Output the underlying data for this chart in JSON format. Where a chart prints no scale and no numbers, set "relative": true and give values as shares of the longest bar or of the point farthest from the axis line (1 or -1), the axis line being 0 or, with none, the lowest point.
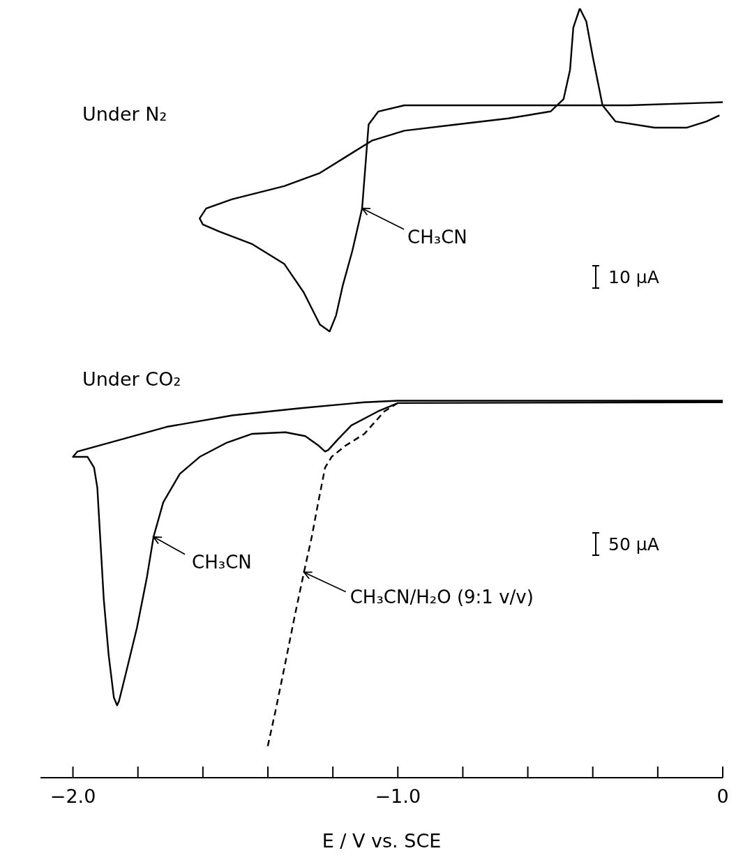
{
  "chart_data": {
    "type": "line",
    "relative": true,
    "xlim": [
      -2.1,
      0
    ],
    "xticks": [
      {
        "value": -2,
        "label": "−2.0"
      },
      {
        "value": -1.8,
        "label": null
      },
      {
        "value": -1.6,
        "label": null
      },
      {
        "value": -1.4,
        "label": null
      },
      {
        "value": -1.2,
        "label": null
      },
      {
        "value": -1,
        "label": "−1.0"
      },
      {
        "value": -0.8,
        "label": null
      },
      {
        "value": -0.6,
        "label": null
      },
      {
        "value": -0.4,
        "label": null
      },
      {
        "value": -0.2,
        "label": null
      },
      0
    ],
    "xlabel": "E / V vs. SCE",
    "marker": "none",
    "line_style": "solid",
    "annotations": [
      "Under N₂",
      "10 μA",
      "Under CO₂",
      "50 μA"
    ],
    "series": [
      {
        "name": "CH₃CN",
        "color": "#000000",
        "x": [
          0,
          -0.29,
          -0.7,
          -0.98,
          -1.06,
          -1.09,
          -1.11,
          -1.14,
          -1.17,
          -1.19,
          -1.21,
          -1.24,
          -1.29,
          -1.35,
          -1.45,
          -1.55,
          -1.6,
          -1.61,
          -1.59,
          -1.51,
          -1.35,
          -1.24,
          -1.16,
          -1.08,
          -0.98,
          -0.82,
          -0.66,
          -0.53,
          -0.49,
          -0.47,
          -0.46,
          -0.44,
          -0.42,
          -0.4,
          -0.37,
          -0.33,
          -0.21,
          -0.11,
          -0.05,
          -0.01
        ],
        "values": [
          0.878,
          0.874,
          0.874,
          0.874,
          0.866,
          0.849,
          0.74,
          0.685,
          0.639,
          0.601,
          0.58,
          0.589,
          0.631,
          0.668,
          0.694,
          0.71,
          0.719,
          0.727,
          0.74,
          0.752,
          0.769,
          0.786,
          0.807,
          0.828,
          0.841,
          0.849,
          0.857,
          0.866,
          0.882,
          0.92,
          0.975,
          1,
          0.983,
          0.937,
          0.874,
          0.853,
          0.845,
          0.845,
          0.853,
          0.861
        ]
      },
      {
        "name": "CH₃CN",
        "color": "#000000",
        "x": [
          0,
          -1.0,
          -1.062,
          -1.143,
          -1.184,
          -1.214,
          -1.224,
          -1.245,
          -1.285,
          -1.346,
          -1.448,
          -1.529,
          -1.61,
          -1.671,
          -1.722,
          -1.752,
          -1.773,
          -1.803,
          -1.834,
          -1.858,
          -1.864,
          -1.874,
          -1.89,
          -1.905,
          -1.915,
          -1.925,
          -1.935,
          -1.955,
          -1.996,
          -2.0,
          -1.986,
          -1.712,
          -1.509,
          -1.306,
          -1.103,
          -1.0,
          0
        ],
        "values": [
          0.488,
          0.487,
          0.476,
          0.458,
          0.44,
          0.426,
          0.424,
          0.432,
          0.444,
          0.449,
          0.447,
          0.435,
          0.417,
          0.395,
          0.358,
          0.313,
          0.259,
          0.195,
          0.141,
          0.1,
          0.094,
          0.104,
          0.159,
          0.231,
          0.304,
          0.377,
          0.403,
          0.417,
          0.417,
          0.417,
          0.424,
          0.456,
          0.471,
          0.48,
          0.488,
          0.49,
          0.49
        ]
      },
      {
        "name": "CH₃CN/H₂O (9:1 v/v)",
        "color": "#000000",
        "line_style": "dashed",
        "x": [
          -1.0,
          -1.042,
          -1.103,
          -1.163,
          -1.204,
          -1.224,
          -1.245,
          -1.265,
          -1.289,
          -1.316,
          -1.346,
          -1.377,
          -1.403
        ],
        "values": [
          0.487,
          0.476,
          0.447,
          0.431,
          0.417,
          0.403,
          0.358,
          0.313,
          0.267,
          0.213,
          0.15,
          0.086,
          0.036
        ]
      }
    ]
  }
}
